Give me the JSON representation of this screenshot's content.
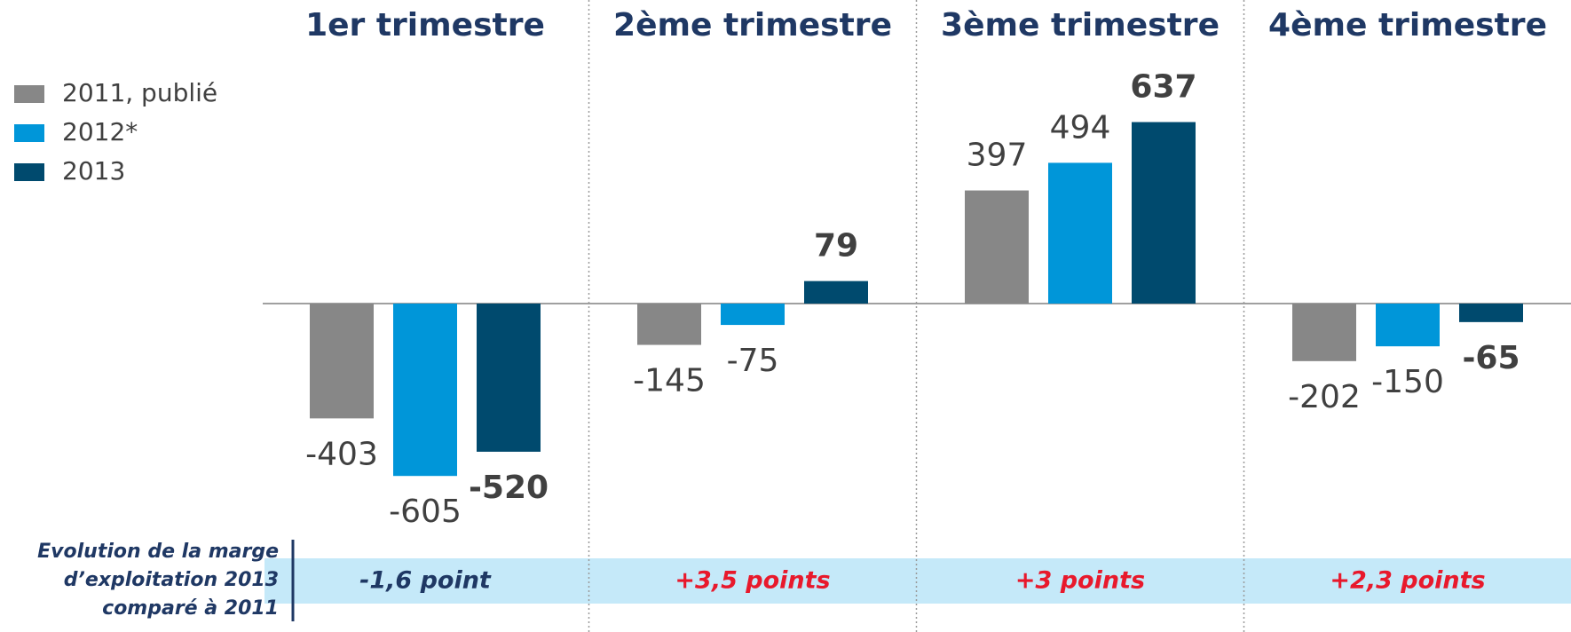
{
  "chart_data": {
    "type": "bar",
    "categories": [
      "1er trimestre",
      "2ème trimestre",
      "3ème trimestre",
      "4ème trimestre"
    ],
    "series": [
      {
        "name": "2011, publié",
        "color": "#878787",
        "values": [
          -403,
          -145,
          397,
          -202
        ]
      },
      {
        "name": "2012*",
        "color": "#0096d9",
        "values": [
          -605,
          -75,
          494,
          -150
        ]
      },
      {
        "name": "2013",
        "color": "#004a6e",
        "values": [
          -520,
          79,
          637,
          -65
        ]
      }
    ],
    "annotation_label": [
      "Evolution de la marge",
      "d’exploitation 2013",
      "comparé à 2011"
    ],
    "annotations": [
      "-1,6 point",
      "+3,5 points",
      "+3 points",
      "+2,3 points"
    ],
    "annotation_colors": [
      "#1f3864",
      "#e8192c",
      "#e8192c",
      "#e8192c"
    ]
  }
}
